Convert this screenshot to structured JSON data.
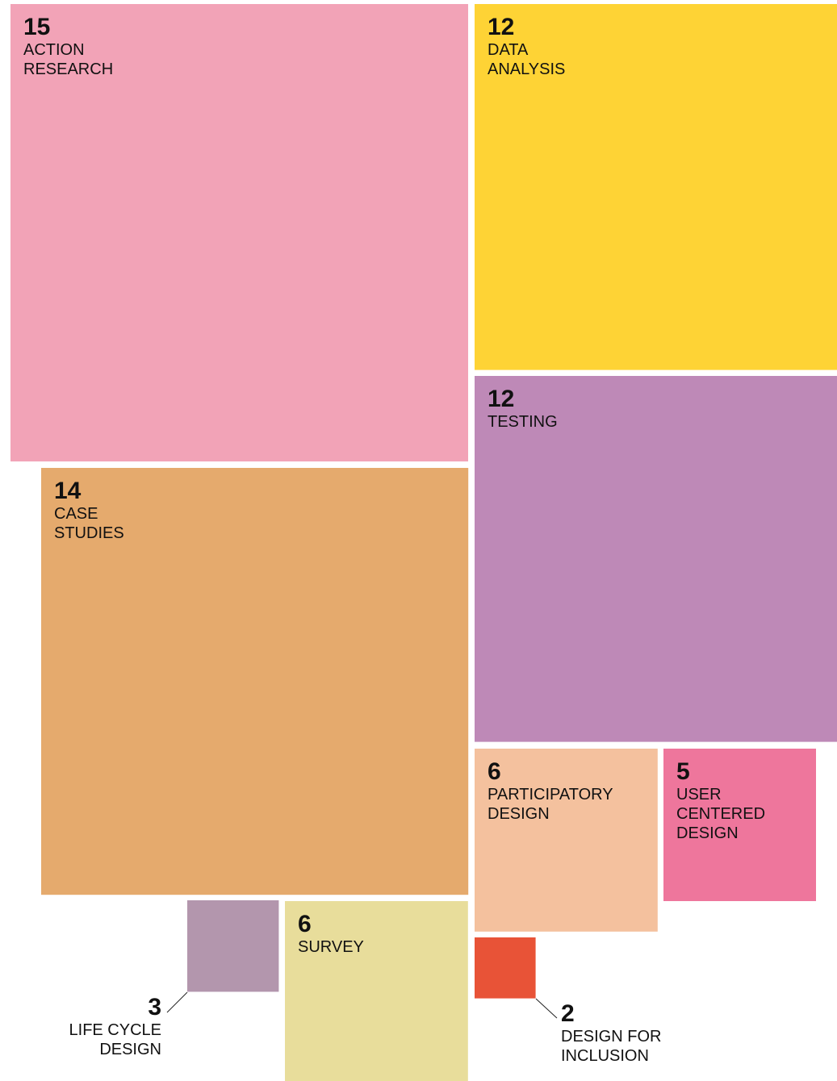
{
  "chart_data": {
    "type": "squares",
    "categories": [
      [
        "ACTION",
        "RESEARCH"
      ],
      [
        "DATA",
        "ANALYSIS"
      ],
      [
        "CASE",
        "STUDIES"
      ],
      [
        "TESTING"
      ],
      [
        "PARTICIPATORY",
        "DESIGN"
      ],
      [
        "USER",
        "CENTERED",
        "DESIGN"
      ],
      [
        "LIFE CYCLE",
        "DESIGN"
      ],
      [
        "SURVEY"
      ],
      [
        "DESIGN FOR",
        "INCLUSION"
      ]
    ],
    "values": [
      15,
      12,
      14,
      12,
      6,
      5,
      3,
      6,
      2
    ],
    "colors": [
      "#f2a3b7",
      "#fed335",
      "#e5aa6d",
      "#be89b7",
      "#f4c19e",
      "#ee769c",
      "#b396ad",
      "#e8dd9b",
      "#e85337"
    ]
  }
}
